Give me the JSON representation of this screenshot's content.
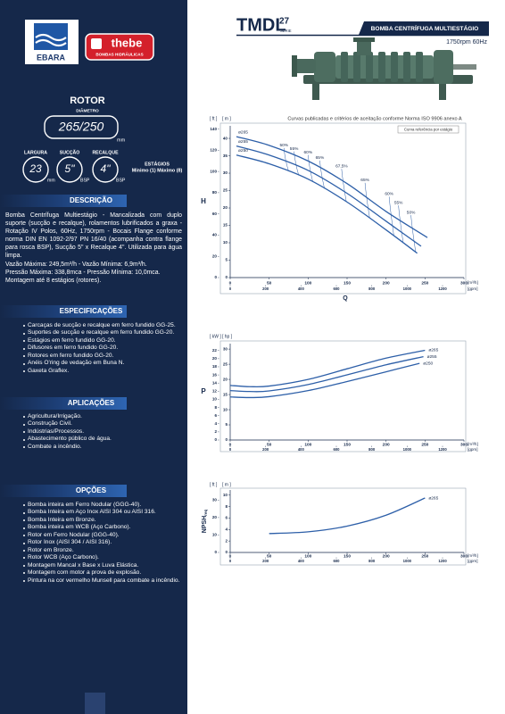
{
  "header": {
    "brand": "EBARA",
    "partner": "thebe",
    "partner_tagline": "BOMBAS HIDRÁULICAS",
    "model": "TMDL",
    "model_number": "27",
    "series_label": "SÉRIE",
    "product": "BOMBA CENTRÍFUGA MULTIESTÁGIO",
    "rating": "1750rpm 60Hz"
  },
  "rotor": {
    "title": "ROTOR",
    "diameter_label": "DIÂMETRO",
    "diameter": "265/250",
    "diameter_unit": "mm",
    "specs": [
      {
        "label": "LARGURA",
        "value": "23",
        "unit": "mm"
      },
      {
        "label": "SUCÇÃO",
        "value": "5\"",
        "unit": "BSP"
      },
      {
        "label": "RECALQUE",
        "value": "4\"",
        "unit": "BSP"
      }
    ],
    "stages_label": "ESTÁGIOS",
    "stages": "Mínimo (1) Máximo (8)"
  },
  "sections": [
    {
      "title": "DESCRIÇÃO",
      "paragraphs": [
        "Bomba Centrífuga Multiestágio - Mancalizada com duplo suporte (sucção e recalque), rolamentos lubrificados a graxa - Rotação IV Polos, 60Hz, 1750rpm - Bocais Flange conforme norma DIN EN 1092-2/97 PN 16/40 (acompanha contra flange para rosca BSP), Sucção 5\" x Recalque 4\". Utilizada para água limpa.",
        "Vazão Máxima: 249,5m³/h - Vazão Mínima: 6,9m³/h.",
        "Pressão Máxima: 338,8mca - Pressão Mínima: 10,0mca.",
        "Montagem até 8 estágios (rotores)."
      ]
    },
    {
      "title": "ESPECIFICAÇÕES",
      "items": [
        "Carcaças de sucção e recalque em ferro fundido GG-25.",
        "Suportes de sucção e recalque em ferro fundido GG-20.",
        "Estágios em ferro fundido GG-20.",
        "Difusores em ferro fundido GG-20.",
        "Rotores em ferro fundido GG-20.",
        "Anéis O'ring de vedação em Buna N.",
        "Gaxeta Graflex."
      ]
    },
    {
      "title": "APLICAÇÕES",
      "items": [
        "Agricultura/Irrigação.",
        "Construção Civil.",
        "Indústrias/Processos.",
        "Abastecimento público de água.",
        "Combate a incêndio."
      ]
    },
    {
      "title": "OPÇÕES",
      "items": [
        "Bomba inteira em Ferro Nodular (GGG-40).",
        "Bomba Inteira em Aço Inox AISI 304 ou AISI 316.",
        "Bomba Inteira em Bronze.",
        "Bomba inteira em WCB (Aço Carbono).",
        "Rotor em Ferro Nodular (GGG-40).",
        "Rotor Inox (AISI 304 / AISI 316).",
        "Rotor em Bronze.",
        "Rotor WCB (Aço Carbono).",
        "Montagem Mancal x Base x Luva Elástica.",
        "Montagem com motor a prova de explosão.",
        "Pintura na cor vermelho Munsell para combate a incêndio."
      ]
    }
  ],
  "charts": [
    {
      "type": "line",
      "title": "Curvas publicadas e critérios de aceitação conforme Norma ISO 9906 anexo A",
      "legend_note": "Curva referência por estágio",
      "y_label": "H",
      "x_label": "Q",
      "x_unit": "[m³/h]",
      "x2_unit": "[gpm]",
      "xlim": [
        0,
        300
      ],
      "xticks": [
        0,
        50,
        100,
        150,
        200,
        250,
        300
      ],
      "x2lim": [
        0,
        1321
      ],
      "x2ticks": [
        0,
        200,
        400,
        600,
        800,
        1000,
        1200
      ],
      "y_axes": [
        {
          "unit": "[ ft ]",
          "lim": [
            0,
            143
          ],
          "ticks": [
            0,
            20,
            40,
            60,
            80,
            100,
            120,
            140
          ]
        },
        {
          "unit": "[ m ]",
          "lim": [
            0,
            43.6
          ],
          "ticks": [
            0,
            5,
            10,
            15,
            20,
            25,
            30,
            35,
            40
          ]
        }
      ],
      "color": "#2d5fa8",
      "series": [
        {
          "name": "ø265",
          "x": [
            8,
            50,
            100,
            150,
            200,
            253
          ],
          "values": [
            40.5,
            38,
            33.5,
            27,
            19,
            11.5
          ]
        },
        {
          "name": "ø255",
          "x": [
            8,
            50,
            100,
            150,
            200,
            245
          ],
          "values": [
            37.8,
            35.2,
            30.8,
            24.2,
            16.2,
            9
          ]
        },
        {
          "name": "ø250",
          "x": [
            8,
            50,
            100,
            150,
            200,
            240
          ],
          "values": [
            35.2,
            32.7,
            28.3,
            21.7,
            13.7,
            7
          ]
        }
      ],
      "efficiency_labels": [
        "50%",
        "55%",
        "60%",
        "65%",
        "67,5%",
        "65%",
        "60%",
        "55%",
        "50%"
      ]
    },
    {
      "type": "line",
      "y_label": "P",
      "x_unit": "[m³/h]",
      "x2_unit": "[gpm]",
      "xlim": [
        0,
        300
      ],
      "xticks": [
        0,
        50,
        100,
        150,
        200,
        250,
        300
      ],
      "x2lim": [
        0,
        1321
      ],
      "x2ticks": [
        0,
        200,
        400,
        600,
        800,
        1000,
        1200
      ],
      "y_axes": [
        {
          "unit": "[ kW ]",
          "lim": [
            0,
            23.7
          ],
          "ticks": [
            0,
            2,
            4,
            6,
            8,
            10,
            12,
            14,
            16,
            18,
            20,
            22
          ]
        },
        {
          "unit": "[ hp ]",
          "lim": [
            0,
            31.8
          ],
          "ticks": [
            0,
            5,
            10,
            15,
            20,
            25,
            30
          ]
        }
      ],
      "color": "#2d5fa8",
      "series": [
        {
          "name": "ø265",
          "x": [
            0,
            25,
            50,
            100,
            150,
            200,
            250
          ],
          "values": [
            18,
            17.6,
            17.8,
            20,
            23.5,
            27,
            29.6
          ]
        },
        {
          "name": "ø255",
          "x": [
            0,
            25,
            50,
            100,
            150,
            200,
            248
          ],
          "values": [
            16.3,
            16,
            16.2,
            18.3,
            21.5,
            24.8,
            27.5
          ]
        },
        {
          "name": "ø250",
          "x": [
            0,
            25,
            50,
            100,
            150,
            200,
            243
          ],
          "values": [
            14.2,
            14,
            14.3,
            16.3,
            19.3,
            22.5,
            25.3
          ]
        }
      ]
    },
    {
      "type": "line",
      "y_label": "NPSH",
      "y_label_sub": "req",
      "x_unit": "[m³/h]",
      "x2_unit": "[gpm]",
      "xlim": [
        0,
        300
      ],
      "xticks": [
        0,
        50,
        100,
        150,
        200,
        250,
        300
      ],
      "x2lim": [
        0,
        1321
      ],
      "x2ticks": [
        0,
        200,
        400,
        600,
        800,
        1000,
        1200
      ],
      "y_axes": [
        {
          "unit": "[ ft ]",
          "lim": [
            0,
            35.8
          ],
          "ticks": [
            0,
            10,
            20,
            30
          ]
        },
        {
          "unit": "[ m ]",
          "lim": [
            0,
            10.9
          ],
          "ticks": [
            0,
            2,
            4,
            6,
            8,
            10
          ]
        }
      ],
      "color": "#2d5fa8",
      "series": [
        {
          "name": "ø265",
          "x": [
            50,
            100,
            150,
            200,
            250
          ],
          "values": [
            3.3,
            3.6,
            4.6,
            6.5,
            9.5
          ]
        }
      ]
    }
  ]
}
